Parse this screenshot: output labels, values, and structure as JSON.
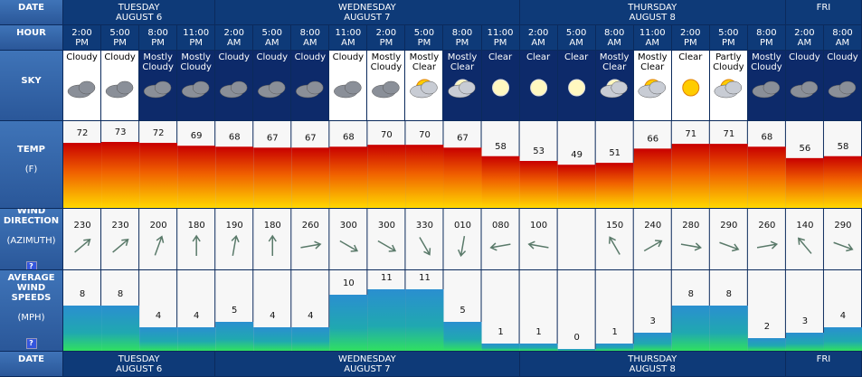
{
  "row_labels": {
    "date": "DATE",
    "hour": "HOUR",
    "sky": "SKY",
    "temp": "TEMP",
    "temp_unit": "(F)",
    "wind_direction": "WIND DIRECTION",
    "wind_direction_unit": "(AZIMUTH)",
    "wind_speed": "AVERAGE WIND SPEEDS",
    "wind_speed_unit": "(MPH)",
    "help": "?"
  },
  "dates": [
    {
      "day": "TUESDAY",
      "date": "AUGUST 6"
    },
    {
      "day": "WEDNESDAY",
      "date": "AUGUST 7"
    },
    {
      "day": "THURSDAY",
      "date": "AUGUST 8"
    },
    {
      "day": "FRI"
    }
  ],
  "hours": [
    {
      "time": "2:00",
      "ampm": "PM"
    },
    {
      "time": "5:00",
      "ampm": "PM"
    },
    {
      "time": "8:00",
      "ampm": "PM"
    },
    {
      "time": "11:00",
      "ampm": "PM"
    },
    {
      "time": "2:00",
      "ampm": "AM"
    },
    {
      "time": "5:00",
      "ampm": "AM"
    },
    {
      "time": "8:00",
      "ampm": "AM"
    },
    {
      "time": "11:00",
      "ampm": "AM"
    },
    {
      "time": "2:00",
      "ampm": "PM"
    },
    {
      "time": "5:00",
      "ampm": "PM"
    },
    {
      "time": "8:00",
      "ampm": "PM"
    },
    {
      "time": "11:00",
      "ampm": "PM"
    },
    {
      "time": "2:00",
      "ampm": "AM"
    },
    {
      "time": "5:00",
      "ampm": "AM"
    },
    {
      "time": "8:00",
      "ampm": "AM"
    },
    {
      "time": "11:00",
      "ampm": "AM"
    },
    {
      "time": "2:00",
      "ampm": "PM"
    },
    {
      "time": "5:00",
      "ampm": "PM"
    },
    {
      "time": "8:00",
      "ampm": "PM"
    },
    {
      "time": "2:00",
      "ampm": "AM"
    },
    {
      "time": "8:00",
      "ampm": "AM"
    }
  ],
  "sky": [
    "Cloudy",
    "Cloudy",
    "Mostly Cloudy",
    "Mostly Cloudy",
    "Cloudy",
    "Cloudy",
    "Cloudy",
    "Cloudy",
    "Mostly Cloudy",
    "Mostly Clear",
    "Mostly Clear",
    "Clear",
    "Clear",
    "Clear",
    "Mostly Clear",
    "Mostly Clear",
    "Clear",
    "Partly Cloudy",
    "Mostly Cloudy",
    "Cloudy",
    "Cloudy"
  ],
  "temp": {
    "values": [
      72,
      73,
      72,
      69,
      68,
      67,
      67,
      68,
      70,
      70,
      67,
      58,
      53,
      49,
      51,
      66,
      71,
      71,
      68,
      56,
      58
    ]
  },
  "wind_direction": {
    "values": [
      230,
      230,
      200,
      180,
      190,
      180,
      260,
      300,
      300,
      330,
      10,
      80,
      100,
      null,
      150,
      240,
      280,
      290,
      260,
      140,
      290
    ],
    "value_labels": [
      "230",
      "230",
      "200",
      "180",
      "190",
      "180",
      "260",
      "300",
      "300",
      "330",
      "010",
      "080",
      "100",
      null,
      "150",
      "240",
      "280",
      "290",
      "260",
      "140",
      "290"
    ]
  },
  "wind_speed": {
    "values": [
      8,
      8,
      4,
      4,
      5,
      4,
      4,
      10,
      11,
      11,
      5,
      1,
      1,
      0,
      1,
      3,
      8,
      8,
      2,
      3,
      4
    ]
  }
}
